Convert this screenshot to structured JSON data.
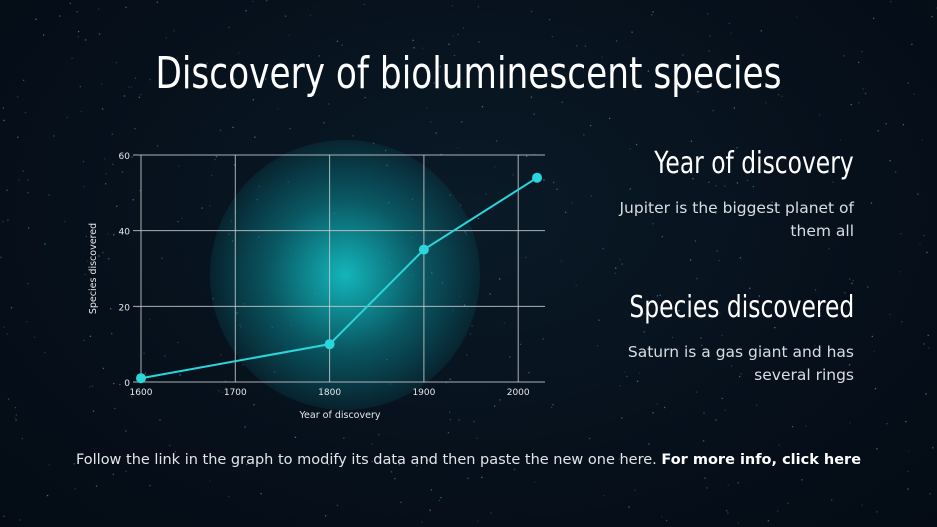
{
  "title": "Discovery of bioluminescent species",
  "side": [
    {
      "heading": "Year of discovery",
      "text": "Jupiter is the biggest planet of them all"
    },
    {
      "heading": "Species discovered",
      "text": "Saturn is a gas giant and has several rings"
    }
  ],
  "footer": {
    "text": "Follow the link in the graph to modify its data and then paste the new one here.",
    "link": "For more info, click here"
  },
  "colors": {
    "line": "#29d6dc",
    "grid": "#c8ccd0",
    "background": "#06101b"
  },
  "chart_data": {
    "type": "line",
    "title": "",
    "xlabel": "Year of discovery",
    "ylabel": "Species discovered",
    "x": [
      1600,
      1800,
      1900,
      2020
    ],
    "values": [
      1,
      10,
      35,
      54
    ],
    "xlim": [
      1600,
      2030
    ],
    "ylim": [
      0,
      60
    ],
    "xticks": [
      1600,
      1700,
      1800,
      1900,
      2000
    ],
    "yticks": [
      0,
      20,
      40,
      60
    ],
    "grid": true
  }
}
